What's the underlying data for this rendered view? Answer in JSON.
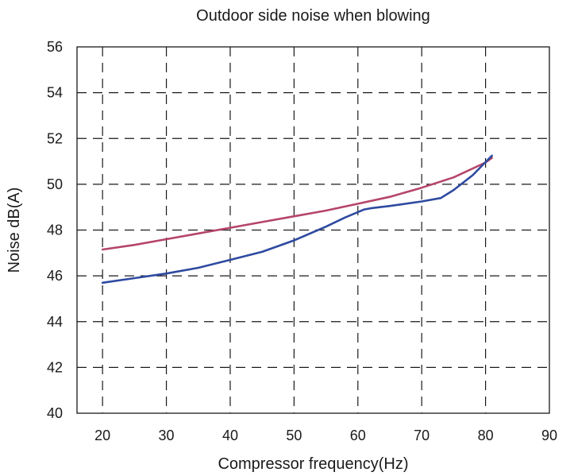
{
  "chart_data": {
    "type": "line",
    "title": "Outdoor side noise when blowing",
    "xlabel": "Compressor frequency(Hz)",
    "ylabel": "Noise dB(A)",
    "xlim": [
      16,
      90
    ],
    "ylim": [
      40,
      56
    ],
    "x_ticks": [
      20,
      30,
      40,
      50,
      60,
      70,
      80,
      90
    ],
    "y_ticks": [
      40,
      42,
      44,
      46,
      48,
      50,
      52,
      54,
      56
    ],
    "grid": true,
    "legend": "none",
    "series": [
      {
        "color": "#b5456a",
        "x": [
          20,
          25,
          30,
          35,
          40,
          45,
          50,
          55,
          60,
          65,
          70,
          75,
          80,
          81
        ],
        "y": [
          47.15,
          47.35,
          47.6,
          47.85,
          48.1,
          48.35,
          48.6,
          48.85,
          49.15,
          49.45,
          49.85,
          50.3,
          50.95,
          51.15
        ]
      },
      {
        "color": "#2e4aa0",
        "x": [
          20,
          25,
          30,
          35,
          40,
          45,
          50,
          55,
          58,
          61,
          62,
          65,
          70,
          73,
          75,
          78,
          81
        ],
        "y": [
          45.7,
          45.9,
          46.1,
          46.35,
          46.7,
          47.05,
          47.55,
          48.15,
          48.55,
          48.9,
          48.95,
          49.05,
          49.25,
          49.4,
          49.75,
          50.4,
          51.25
        ]
      }
    ]
  }
}
